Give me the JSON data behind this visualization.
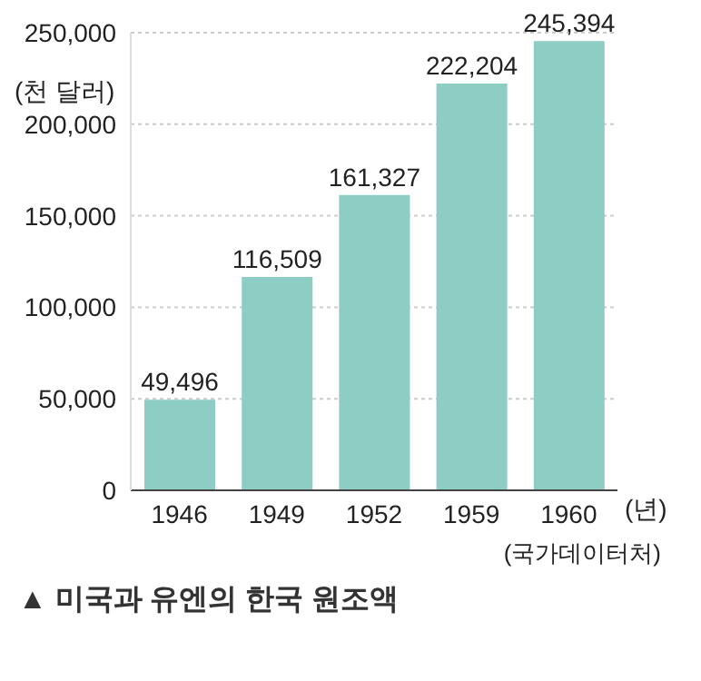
{
  "chart_data": {
    "type": "bar",
    "title": "▲ 미국과 유엔의 한국 원조액",
    "ylabel": "(천 달러)",
    "xlabel": "(년)",
    "annotations": [
      "(국가데이터처)"
    ],
    "categories": [
      "1946",
      "1949",
      "1952",
      "1959",
      "1960"
    ],
    "values": [
      49496,
      116509,
      161327,
      222204,
      245394
    ],
    "value_labels": [
      "49,496",
      "116,509",
      "161,327",
      "222,204",
      "245,394"
    ],
    "color": "#8ecdc4",
    "ylim": [
      0,
      250000
    ],
    "yticks": [
      0,
      {
        "value": 50000,
        "label": "50,000"
      },
      {
        "value": 100000,
        "label": "100,000"
      },
      {
        "value": 150000,
        "label": "150,000"
      },
      {
        "value": 200000,
        "label": "200,000"
      },
      {
        "value": 250000,
        "label": "250,000"
      }
    ],
    "grid": "y"
  }
}
